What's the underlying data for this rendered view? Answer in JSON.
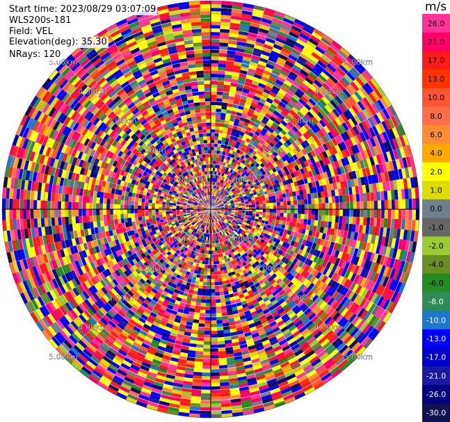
{
  "info": {
    "start_time": "Start time: 2023/08/29 03:07:09",
    "site": "WLS200s-181",
    "field": "Field: VEL",
    "elevation": "Elevation(deg): 35.30",
    "nrays": "NRays: 120"
  },
  "chart_data": {
    "type": "heatmap",
    "projection": "polar-ppi",
    "n_rays": 120,
    "n_gates": 60,
    "range_rings_km": [
      1,
      2,
      3,
      4,
      5
    ],
    "max_range_km": 5.0,
    "ring_label_text": [
      "1.00km",
      "2.00km",
      "3.00km",
      "4.00km",
      "5.00km"
    ],
    "colorbar": {
      "unit": "m/s",
      "ticks": [
        "26.0",
        "21.0",
        "17.0",
        "13.0",
        "10.0",
        "8.0",
        "6.0",
        "4.0",
        "2.0",
        "1.0",
        "0.0",
        "-1.0",
        "-2.0",
        "-4.0",
        "-6.0",
        "-8.0",
        "-10.0",
        "-13.0",
        "-17.0",
        "-21.0",
        "-26.0",
        "-30.0"
      ],
      "colors": [
        "#ff3399",
        "#ff0066",
        "#ff1a1a",
        "#ff3300",
        "#ff5533",
        "#ff6e4a",
        "#ff8c33",
        "#ffaa00",
        "#ffff00",
        "#dcdc00",
        "#708090",
        "#666666",
        "#99cc33",
        "#6b8e23",
        "#228b22",
        "#2e8b57",
        "#1e78c8",
        "#0000ff",
        "#0000cd",
        "#1a1aa0",
        "#000080",
        "#101050"
      ],
      "light_text_from_index": 15
    }
  }
}
